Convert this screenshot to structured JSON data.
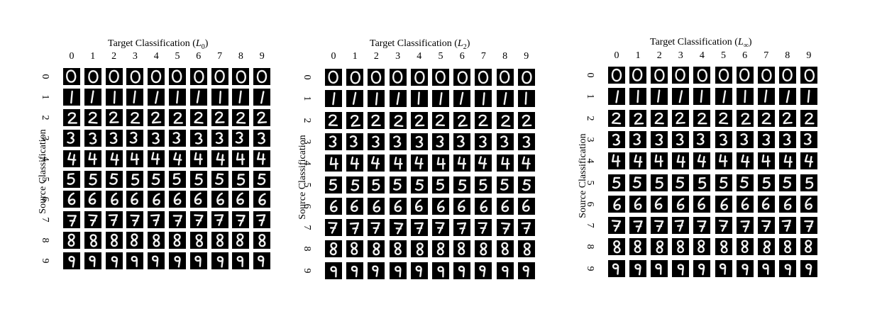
{
  "panels": [
    {
      "title_text": "Target Classification (",
      "title_var": "L",
      "title_sub": "0",
      "title_close": ")",
      "ylabel": "Source Classification",
      "columns": [
        "0",
        "1",
        "2",
        "3",
        "4",
        "5",
        "6",
        "7",
        "8",
        "9"
      ],
      "rows": [
        "0",
        "1",
        "2",
        "3",
        "4",
        "5",
        "6",
        "7",
        "8",
        "9"
      ]
    },
    {
      "title_text": "Target Classification (",
      "title_var": "L",
      "title_sub": "2",
      "title_close": ")",
      "ylabel": "Source Classification",
      "columns": [
        "0",
        "1",
        "2",
        "3",
        "4",
        "5",
        "6",
        "7",
        "8",
        "9"
      ],
      "rows": [
        "0",
        "1",
        "2",
        "3",
        "4",
        "5",
        "6",
        "7",
        "8",
        "9"
      ]
    },
    {
      "title_text": "Target Classification (",
      "title_var": "L",
      "title_sub": "∞",
      "title_close": ")",
      "ylabel": "Source Classification",
      "columns": [
        "0",
        "1",
        "2",
        "3",
        "4",
        "5",
        "6",
        "7",
        "8",
        "9"
      ],
      "rows": [
        "0",
        "1",
        "2",
        "3",
        "4",
        "5",
        "6",
        "7",
        "8",
        "9"
      ]
    }
  ],
  "digit_images": {
    "0": "handwritten-zero",
    "1": "handwritten-one",
    "2": "handwritten-two",
    "3": "handwritten-three",
    "4": "handwritten-four",
    "5": "handwritten-five",
    "6": "handwritten-six",
    "7": "handwritten-seven",
    "8": "handwritten-eight",
    "9": "handwritten-nine"
  }
}
